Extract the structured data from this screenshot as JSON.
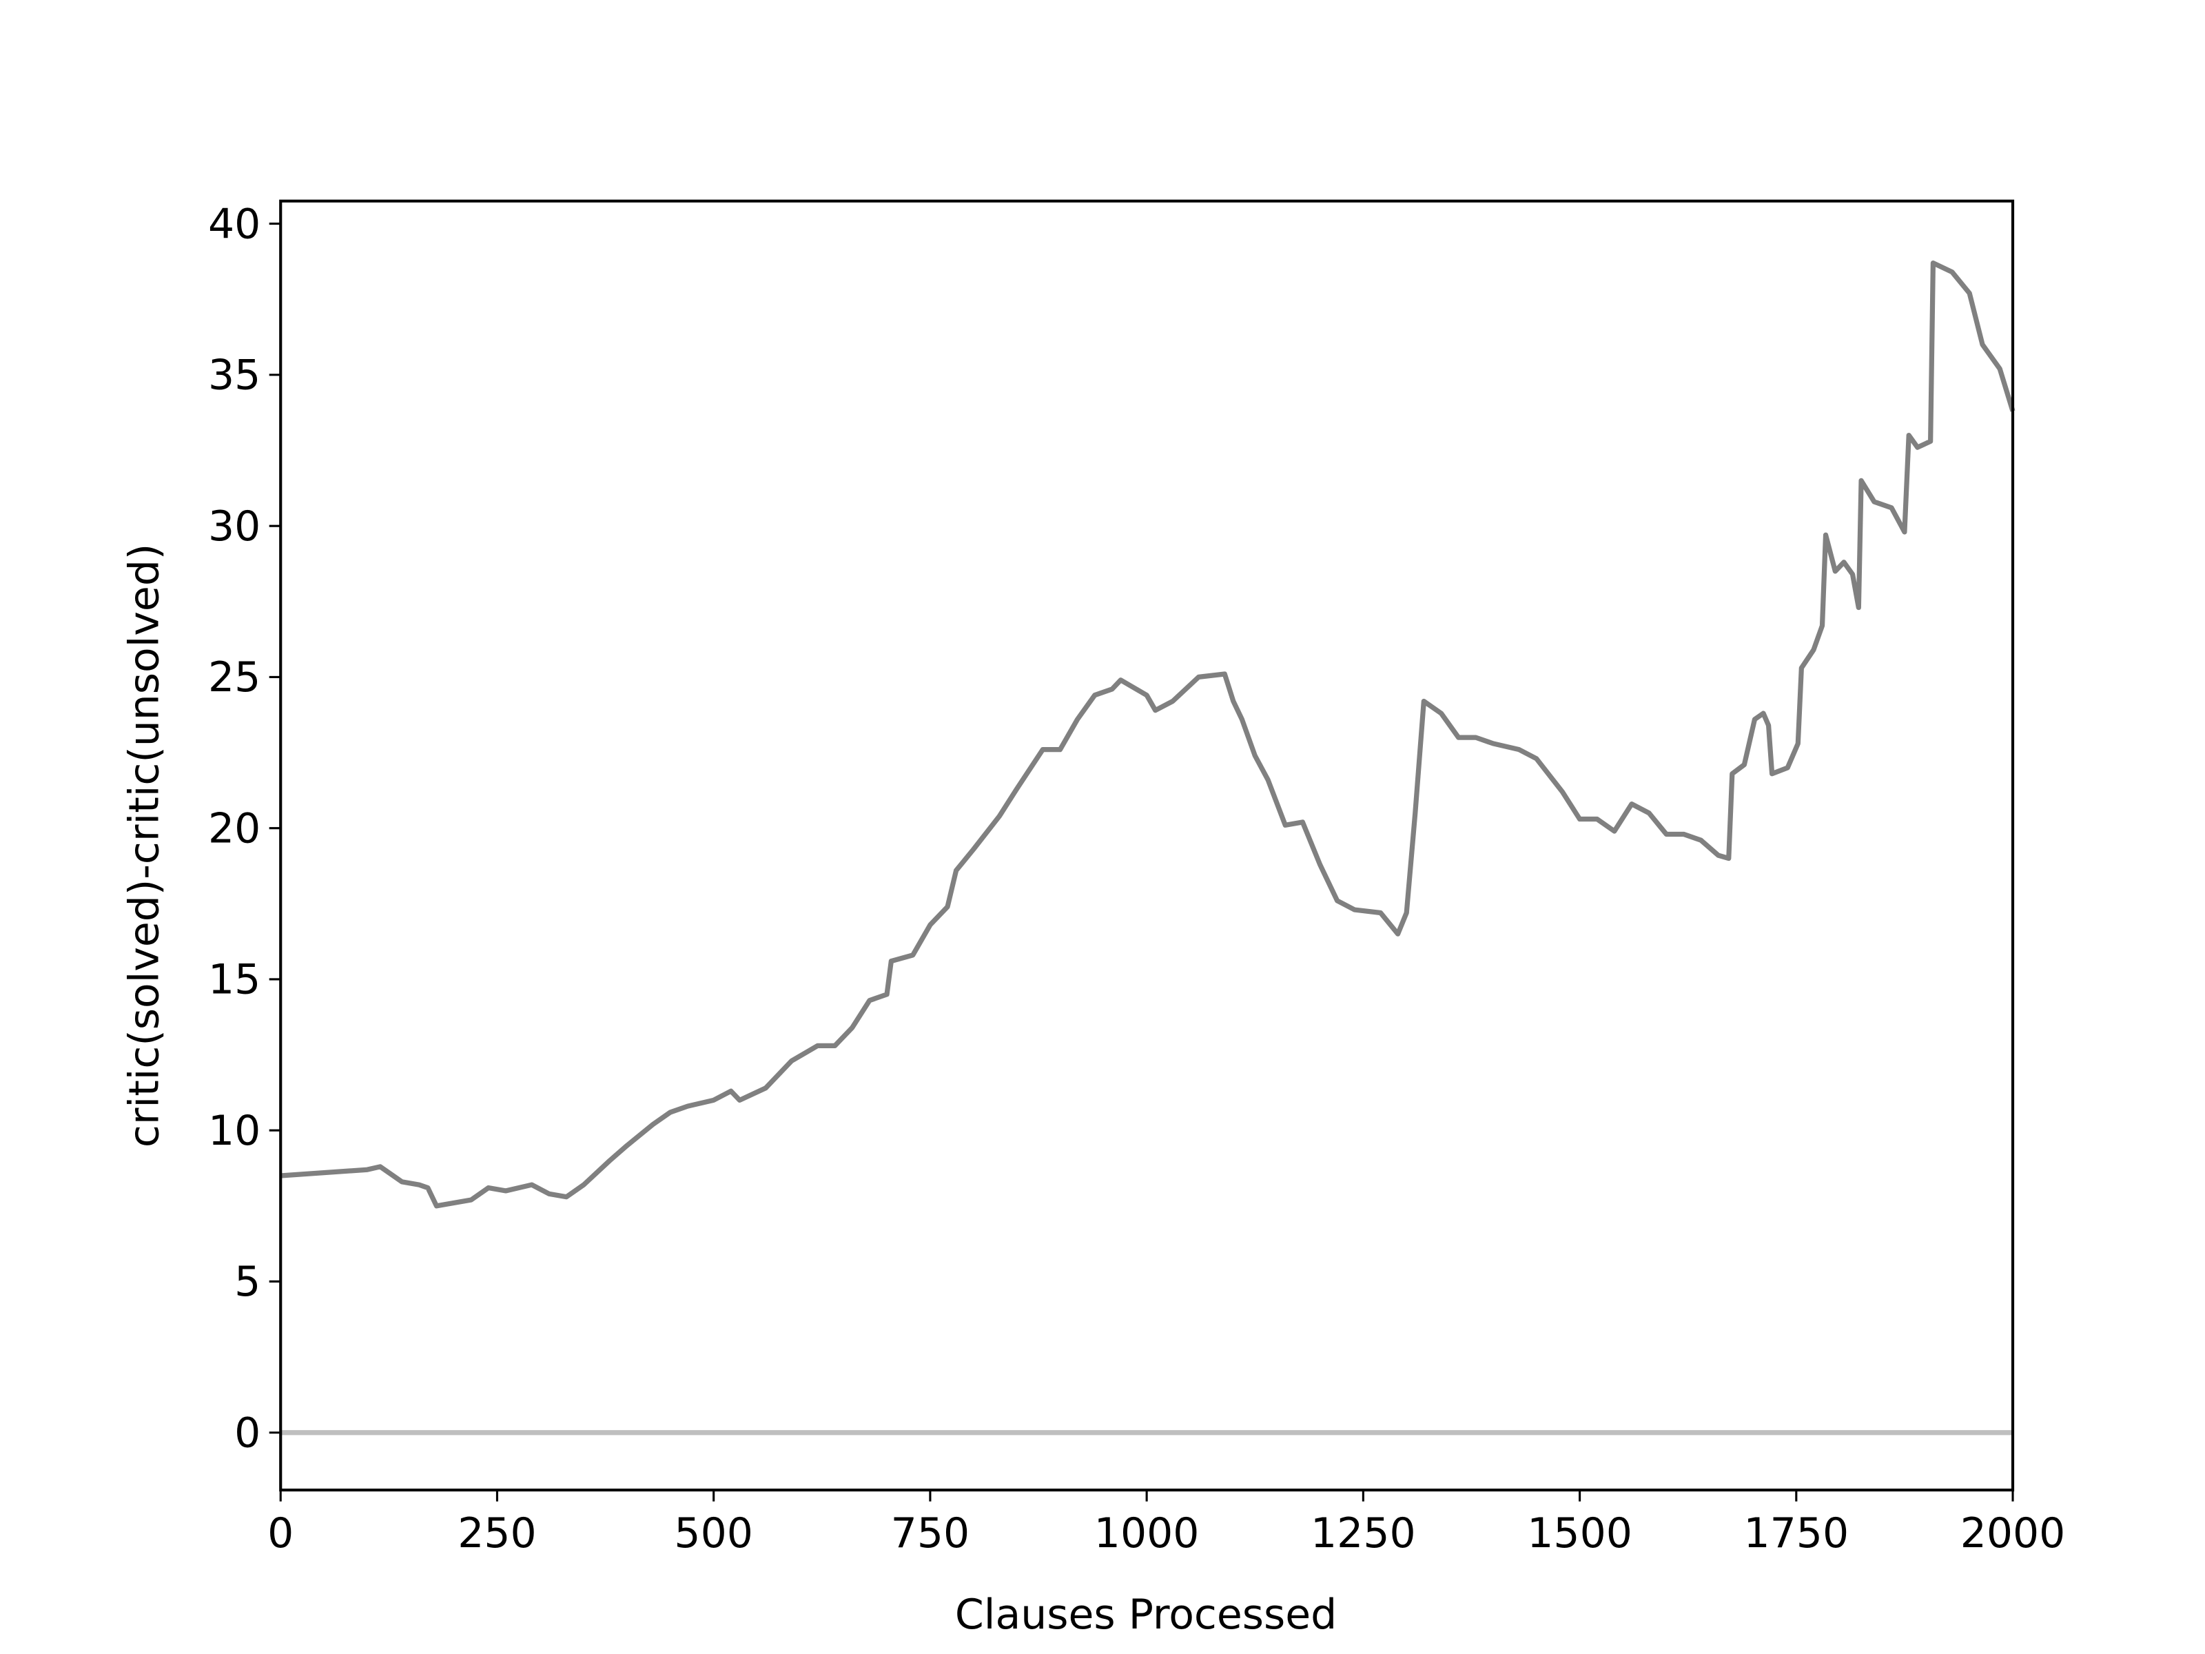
{
  "chart_data": {
    "type": "line",
    "x_label": "Clauses Processed",
    "y_label": "critic(solved)-critic(unsolved)",
    "x": [
      0,
      100,
      115,
      125,
      140,
      160,
      170,
      180,
      200,
      220,
      240,
      260,
      290,
      310,
      330,
      350,
      380,
      400,
      430,
      450,
      470,
      500,
      520,
      530,
      560,
      590,
      620,
      640,
      660,
      680,
      700,
      705,
      730,
      750,
      770,
      780,
      800,
      830,
      850,
      880,
      900,
      920,
      940,
      960,
      970,
      1000,
      1010,
      1030,
      1060,
      1090,
      1100,
      1110,
      1125,
      1140,
      1160,
      1180,
      1200,
      1220,
      1240,
      1270,
      1290,
      1300,
      1310,
      1320,
      1340,
      1360,
      1380,
      1400,
      1430,
      1450,
      1480,
      1500,
      1520,
      1540,
      1560,
      1580,
      1600,
      1620,
      1640,
      1660,
      1672,
      1676,
      1690,
      1702,
      1712,
      1718,
      1722,
      1740,
      1752,
      1756,
      1770,
      1780,
      1784,
      1795,
      1805,
      1815,
      1822,
      1825,
      1840,
      1860,
      1875,
      1880,
      1890,
      1905,
      1908,
      1930,
      1950,
      1965,
      1985,
      2000
    ],
    "series": [
      {
        "color": "#808080",
        "values": [
          8.5,
          8.7,
          8.8,
          8.6,
          8.3,
          8.2,
          8.1,
          7.5,
          7.6,
          7.7,
          8.1,
          8.0,
          8.2,
          7.9,
          7.8,
          8.2,
          9.0,
          9.5,
          10.2,
          10.6,
          10.8,
          11.0,
          11.3,
          11.0,
          11.4,
          12.3,
          12.8,
          12.8,
          13.4,
          14.3,
          14.5,
          15.6,
          15.8,
          16.8,
          17.4,
          18.6,
          19.3,
          20.4,
          21.3,
          22.6,
          22.6,
          23.6,
          24.4,
          24.6,
          24.9,
          24.4,
          23.9,
          24.2,
          25.0,
          25.1,
          24.2,
          23.6,
          22.4,
          21.6,
          20.1,
          20.2,
          18.8,
          17.6,
          17.3,
          17.2,
          16.5,
          17.2,
          20.5,
          24.2,
          23.8,
          23.0,
          23.0,
          22.8,
          22.6,
          22.3,
          21.2,
          20.3,
          20.3,
          19.9,
          20.8,
          20.5,
          19.8,
          19.8,
          19.6,
          19.1,
          19.0,
          21.8,
          22.1,
          23.6,
          23.8,
          23.4,
          21.8,
          22.0,
          22.8,
          25.3,
          25.9,
          26.7,
          29.7,
          28.5,
          28.8,
          28.4,
          27.3,
          31.5,
          30.8,
          30.6,
          29.8,
          33.0,
          32.6,
          32.8,
          38.7,
          38.4,
          37.7,
          36.0,
          35.2,
          33.8
        ]
      }
    ],
    "reference_line": {
      "y": 0,
      "color": "#bfbfbf"
    },
    "xlim": [
      0,
      2000
    ],
    "xticks": [
      0,
      250,
      500,
      750,
      1000,
      1250,
      1500,
      1750,
      2000
    ],
    "ylim": [
      -1.9,
      40.75
    ],
    "yticks": [
      0,
      5,
      10,
      15,
      20,
      25,
      30,
      35,
      40
    ]
  }
}
